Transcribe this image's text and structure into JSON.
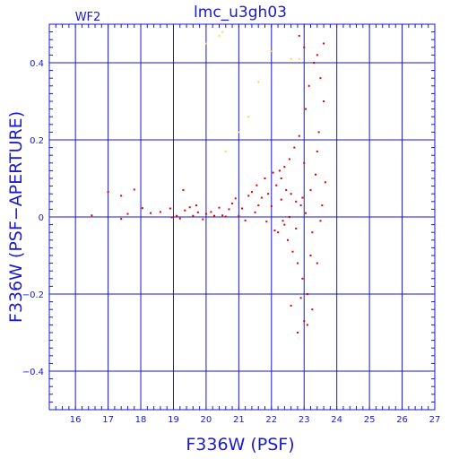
{
  "chart_data": {
    "type": "scatter",
    "title": "lmc_u3gh03",
    "subtitle": "WF2",
    "xlabel": "F336W (PSF)",
    "ylabel": "F336W (PSF−APERTURE)",
    "xlim": [
      15.2,
      27.0
    ],
    "ylim": [
      -0.5,
      0.5
    ],
    "xticks": [
      16,
      17,
      18,
      19,
      20,
      21,
      22,
      23,
      24,
      25,
      26,
      27
    ],
    "yticks": [
      -0.4,
      -0.2,
      0,
      0.2,
      0.4
    ],
    "ytick_labels": [
      "−0.4",
      "−0.2",
      "0",
      "0.2",
      "0.4"
    ],
    "grid": true,
    "colors": {
      "axes": "#1a1acc",
      "points": "#e00000",
      "flagged_points": "#f0e040"
    },
    "series": [
      {
        "color": "#e00000",
        "points": [
          [
            16.5,
            0.004
          ],
          [
            17.0,
            0.065
          ],
          [
            17.4,
            0.055
          ],
          [
            17.4,
            -0.005
          ],
          [
            17.6,
            0.008
          ],
          [
            17.8,
            0.071
          ],
          [
            18.05,
            0.023
          ],
          [
            18.3,
            0.01
          ],
          [
            18.6,
            0.013
          ],
          [
            18.9,
            0.022
          ],
          [
            18.95,
            -0.001
          ],
          [
            19.1,
            0.003
          ],
          [
            19.2,
            -0.004
          ],
          [
            19.3,
            0.07
          ],
          [
            19.35,
            0.017
          ],
          [
            19.5,
            0.025
          ],
          [
            19.6,
            0.003
          ],
          [
            19.7,
            0.03
          ],
          [
            19.75,
            0.012
          ],
          [
            19.9,
            -0.006
          ],
          [
            20.0,
            0.008
          ],
          [
            20.15,
            0.013
          ],
          [
            20.25,
            0.003
          ],
          [
            20.4,
            0.024
          ],
          [
            20.5,
            0.004
          ],
          [
            20.6,
            0.001
          ],
          [
            20.7,
            0.02
          ],
          [
            20.8,
            0.035
          ],
          [
            20.9,
            0.048
          ],
          [
            21.0,
            0.003
          ],
          [
            21.1,
            0.022
          ],
          [
            21.2,
            -0.009
          ],
          [
            21.3,
            0.055
          ],
          [
            21.4,
            0.065
          ],
          [
            21.5,
            0.012
          ],
          [
            21.55,
            0.082
          ],
          [
            21.6,
            0.03
          ],
          [
            21.7,
            0.05
          ],
          [
            21.8,
            0.1
          ],
          [
            21.85,
            -0.012
          ],
          [
            21.9,
            0.06
          ],
          [
            22.0,
            0.028
          ],
          [
            22.05,
            0.115
          ],
          [
            22.1,
            -0.035
          ],
          [
            22.15,
            0.082
          ],
          [
            22.2,
            -0.04
          ],
          [
            22.25,
            0.12
          ],
          [
            22.3,
            0.045
          ],
          [
            22.35,
            -0.01
          ],
          [
            22.4,
            0.13
          ],
          [
            22.45,
            0.07
          ],
          [
            22.5,
            -0.06
          ],
          [
            22.55,
            0.15
          ],
          [
            22.6,
            0.06
          ],
          [
            22.65,
            -0.09
          ],
          [
            22.7,
            0.18
          ],
          [
            22.75,
            0.04
          ],
          [
            22.8,
            -0.12
          ],
          [
            22.85,
            0.21
          ],
          [
            22.9,
            0.03
          ],
          [
            22.95,
            -0.16
          ],
          [
            23.0,
            0.14
          ],
          [
            23.05,
            0.28
          ],
          [
            23.1,
            -0.2
          ],
          [
            23.15,
            0.34
          ],
          [
            23.2,
            0.07
          ],
          [
            23.25,
            -0.24
          ],
          [
            23.3,
            0.4
          ],
          [
            23.35,
            0.11
          ],
          [
            23.4,
            -0.12
          ],
          [
            23.45,
            0.22
          ],
          [
            23.5,
            0.36
          ],
          [
            23.55,
            0.03
          ],
          [
            23.6,
            0.3
          ],
          [
            23.65,
            0.09
          ],
          [
            22.0,
            0.43
          ],
          [
            22.85,
            0.47
          ],
          [
            23.0,
            0.44
          ],
          [
            22.6,
            -0.23
          ],
          [
            22.8,
            -0.3
          ],
          [
            23.0,
            -0.27
          ],
          [
            23.1,
            -0.28
          ],
          [
            22.9,
            -0.21
          ],
          [
            23.4,
            0.42
          ],
          [
            23.6,
            0.45
          ],
          [
            22.4,
            -0.02
          ],
          [
            22.55,
            0.0
          ],
          [
            22.75,
            -0.03
          ],
          [
            23.05,
            0.01
          ],
          [
            23.25,
            -0.04
          ],
          [
            23.5,
            -0.01
          ],
          [
            22.95,
            0.05
          ],
          [
            22.3,
            0.1
          ],
          [
            23.4,
            0.17
          ],
          [
            23.2,
            -0.1
          ]
        ]
      },
      {
        "color": "#f0e040",
        "points": [
          [
            20.0,
            0.45
          ],
          [
            20.4,
            0.47
          ],
          [
            20.5,
            0.48
          ],
          [
            22.0,
            0.43
          ],
          [
            22.6,
            0.41
          ],
          [
            22.85,
            0.41
          ],
          [
            21.3,
            0.26
          ],
          [
            21.6,
            0.35
          ],
          [
            20.6,
            0.17
          ],
          [
            21.0,
            0.22
          ]
        ]
      }
    ]
  }
}
